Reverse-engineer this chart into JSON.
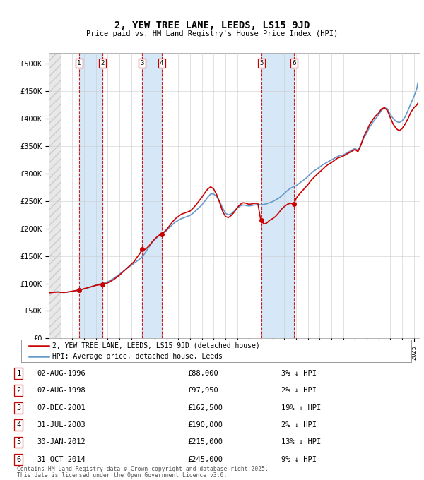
{
  "title": "2, YEW TREE LANE, LEEDS, LS15 9JD",
  "subtitle": "Price paid vs. HM Land Registry's House Price Index (HPI)",
  "legend_line1": "2, YEW TREE LANE, LEEDS, LS15 9JD (detached house)",
  "legend_line2": "HPI: Average price, detached house, Leeds",
  "footer1": "Contains HM Land Registry data © Crown copyright and database right 2025.",
  "footer2": "This data is licensed under the Open Government Licence v3.0.",
  "ylim": [
    0,
    520000
  ],
  "yticks": [
    0,
    50000,
    100000,
    150000,
    200000,
    250000,
    300000,
    350000,
    400000,
    450000,
    500000
  ],
  "ytick_labels": [
    "£0",
    "£50K",
    "£100K",
    "£150K",
    "£200K",
    "£250K",
    "£300K",
    "£350K",
    "£400K",
    "£450K",
    "£500K"
  ],
  "sale_dates": [
    1996.58,
    1998.58,
    2001.92,
    2003.58,
    2012.08,
    2014.83
  ],
  "sale_prices": [
    88000,
    97950,
    162500,
    190000,
    215000,
    245000
  ],
  "sale_labels": [
    "1",
    "2",
    "3",
    "4",
    "5",
    "6"
  ],
  "sale_info": [
    {
      "num": "1",
      "date": "02-AUG-1996",
      "price": "£88,000",
      "hpi": "3% ↓ HPI"
    },
    {
      "num": "2",
      "date": "07-AUG-1998",
      "price": "£97,950",
      "hpi": "2% ↓ HPI"
    },
    {
      "num": "3",
      "date": "07-DEC-2001",
      "price": "£162,500",
      "hpi": "19% ↑ HPI"
    },
    {
      "num": "4",
      "date": "31-JUL-2003",
      "price": "£190,000",
      "hpi": "2% ↓ HPI"
    },
    {
      "num": "5",
      "date": "30-JAN-2012",
      "price": "£215,000",
      "hpi": "13% ↓ HPI"
    },
    {
      "num": "6",
      "date": "31-OCT-2014",
      "price": "£245,000",
      "hpi": "9% ↓ HPI"
    }
  ],
  "hpi_color": "#6699cc",
  "price_color": "#cc0000",
  "dot_color": "#cc0000",
  "vline_color": "#cc0000",
  "shade_color": "#d6e8f7",
  "grid_color": "#cccccc",
  "hpi_data": [
    [
      1994.0,
      83000
    ],
    [
      1994.25,
      84000
    ],
    [
      1994.5,
      84500
    ],
    [
      1994.75,
      85000
    ],
    [
      1995.0,
      84000
    ],
    [
      1995.25,
      83500
    ],
    [
      1995.5,
      84000
    ],
    [
      1995.75,
      85000
    ],
    [
      1996.0,
      85500
    ],
    [
      1996.25,
      86000
    ],
    [
      1996.5,
      87000
    ],
    [
      1996.75,
      88500
    ],
    [
      1997.0,
      90000
    ],
    [
      1997.25,
      91500
    ],
    [
      1997.5,
      93000
    ],
    [
      1997.75,
      95000
    ],
    [
      1998.0,
      97000
    ],
    [
      1998.25,
      98500
    ],
    [
      1998.5,
      99500
    ],
    [
      1998.75,
      101000
    ],
    [
      1999.0,
      103000
    ],
    [
      1999.25,
      106000
    ],
    [
      1999.5,
      109000
    ],
    [
      1999.75,
      113000
    ],
    [
      2000.0,
      117000
    ],
    [
      2000.25,
      121000
    ],
    [
      2000.5,
      125000
    ],
    [
      2000.75,
      129000
    ],
    [
      2001.0,
      133000
    ],
    [
      2001.25,
      137000
    ],
    [
      2001.5,
      141000
    ],
    [
      2001.75,
      145000
    ],
    [
      2002.0,
      150000
    ],
    [
      2002.25,
      158000
    ],
    [
      2002.5,
      166000
    ],
    [
      2002.75,
      174000
    ],
    [
      2003.0,
      180000
    ],
    [
      2003.25,
      185000
    ],
    [
      2003.5,
      189000
    ],
    [
      2003.75,
      192000
    ],
    [
      2004.0,
      196000
    ],
    [
      2004.25,
      202000
    ],
    [
      2004.5,
      207000
    ],
    [
      2004.75,
      212000
    ],
    [
      2005.0,
      215000
    ],
    [
      2005.25,
      218000
    ],
    [
      2005.5,
      220000
    ],
    [
      2005.75,
      222000
    ],
    [
      2006.0,
      224000
    ],
    [
      2006.25,
      228000
    ],
    [
      2006.5,
      233000
    ],
    [
      2006.75,
      238000
    ],
    [
      2007.0,
      243000
    ],
    [
      2007.25,
      250000
    ],
    [
      2007.5,
      257000
    ],
    [
      2007.75,
      263000
    ],
    [
      2008.0,
      263000
    ],
    [
      2008.25,
      258000
    ],
    [
      2008.5,
      250000
    ],
    [
      2008.75,
      238000
    ],
    [
      2009.0,
      228000
    ],
    [
      2009.25,
      225000
    ],
    [
      2009.5,
      227000
    ],
    [
      2009.75,
      232000
    ],
    [
      2010.0,
      237000
    ],
    [
      2010.25,
      241000
    ],
    [
      2010.5,
      243000
    ],
    [
      2010.75,
      242000
    ],
    [
      2011.0,
      241000
    ],
    [
      2011.25,
      242000
    ],
    [
      2011.5,
      243000
    ],
    [
      2011.75,
      244000
    ],
    [
      2012.0,
      243000
    ],
    [
      2012.25,
      244000
    ],
    [
      2012.5,
      245000
    ],
    [
      2012.75,
      247000
    ],
    [
      2013.0,
      249000
    ],
    [
      2013.25,
      252000
    ],
    [
      2013.5,
      255000
    ],
    [
      2013.75,
      259000
    ],
    [
      2014.0,
      264000
    ],
    [
      2014.25,
      269000
    ],
    [
      2014.5,
      273000
    ],
    [
      2014.75,
      276000
    ],
    [
      2015.0,
      278000
    ],
    [
      2015.25,
      282000
    ],
    [
      2015.5,
      286000
    ],
    [
      2015.75,
      290000
    ],
    [
      2016.0,
      295000
    ],
    [
      2016.25,
      300000
    ],
    [
      2016.5,
      305000
    ],
    [
      2016.75,
      308000
    ],
    [
      2017.0,
      312000
    ],
    [
      2017.25,
      316000
    ],
    [
      2017.5,
      319000
    ],
    [
      2017.75,
      322000
    ],
    [
      2018.0,
      325000
    ],
    [
      2018.25,
      328000
    ],
    [
      2018.5,
      331000
    ],
    [
      2018.75,
      333000
    ],
    [
      2019.0,
      334000
    ],
    [
      2019.25,
      337000
    ],
    [
      2019.5,
      340000
    ],
    [
      2019.75,
      343000
    ],
    [
      2020.0,
      346000
    ],
    [
      2020.25,
      342000
    ],
    [
      2020.5,
      352000
    ],
    [
      2020.75,
      365000
    ],
    [
      2021.0,
      374000
    ],
    [
      2021.25,
      385000
    ],
    [
      2021.5,
      393000
    ],
    [
      2021.75,
      400000
    ],
    [
      2022.0,
      407000
    ],
    [
      2022.25,
      415000
    ],
    [
      2022.5,
      420000
    ],
    [
      2022.75,
      418000
    ],
    [
      2023.0,
      408000
    ],
    [
      2023.25,
      400000
    ],
    [
      2023.5,
      395000
    ],
    [
      2023.75,
      393000
    ],
    [
      2024.0,
      396000
    ],
    [
      2024.25,
      403000
    ],
    [
      2024.5,
      415000
    ],
    [
      2024.75,
      428000
    ],
    [
      2025.0,
      440000
    ],
    [
      2025.25,
      455000
    ],
    [
      2025.33,
      465000
    ]
  ],
  "price_data": [
    [
      1994.0,
      83000
    ],
    [
      1994.25,
      83500
    ],
    [
      1994.5,
      84000
    ],
    [
      1994.75,
      84500
    ],
    [
      1995.0,
      84000
    ],
    [
      1995.25,
      83800
    ],
    [
      1995.5,
      84200
    ],
    [
      1995.75,
      85000
    ],
    [
      1996.0,
      86000
    ],
    [
      1996.25,
      87000
    ],
    [
      1996.5,
      88000
    ],
    [
      1996.75,
      89000
    ],
    [
      1997.0,
      90500
    ],
    [
      1997.25,
      92000
    ],
    [
      1997.5,
      93500
    ],
    [
      1997.75,
      95000
    ],
    [
      1998.0,
      96500
    ],
    [
      1998.25,
      97500
    ],
    [
      1998.5,
      97950
    ],
    [
      1998.75,
      99000
    ],
    [
      1999.0,
      101000
    ],
    [
      1999.25,
      104000
    ],
    [
      1999.5,
      107000
    ],
    [
      1999.75,
      111000
    ],
    [
      2000.0,
      115000
    ],
    [
      2000.25,
      120000
    ],
    [
      2000.5,
      125000
    ],
    [
      2000.75,
      130000
    ],
    [
      2001.0,
      135000
    ],
    [
      2001.25,
      140000
    ],
    [
      2001.5,
      148000
    ],
    [
      2001.75,
      155000
    ],
    [
      2001.92,
      162500
    ],
    [
      2002.0,
      160000
    ],
    [
      2002.25,
      163000
    ],
    [
      2002.5,
      168000
    ],
    [
      2002.75,
      175000
    ],
    [
      2003.0,
      181000
    ],
    [
      2003.25,
      186000
    ],
    [
      2003.5,
      190000
    ],
    [
      2003.75,
      193000
    ],
    [
      2004.0,
      198000
    ],
    [
      2004.25,
      205000
    ],
    [
      2004.5,
      212000
    ],
    [
      2004.75,
      218000
    ],
    [
      2005.0,
      222000
    ],
    [
      2005.25,
      226000
    ],
    [
      2005.5,
      228000
    ],
    [
      2005.75,
      230000
    ],
    [
      2006.0,
      232000
    ],
    [
      2006.25,
      237000
    ],
    [
      2006.5,
      243000
    ],
    [
      2006.75,
      250000
    ],
    [
      2007.0,
      257000
    ],
    [
      2007.25,
      265000
    ],
    [
      2007.5,
      272000
    ],
    [
      2007.75,
      276000
    ],
    [
      2008.0,
      272000
    ],
    [
      2008.25,
      262000
    ],
    [
      2008.5,
      248000
    ],
    [
      2008.75,
      232000
    ],
    [
      2009.0,
      222000
    ],
    [
      2009.25,
      220000
    ],
    [
      2009.5,
      224000
    ],
    [
      2009.75,
      230000
    ],
    [
      2010.0,
      238000
    ],
    [
      2010.25,
      244000
    ],
    [
      2010.5,
      247000
    ],
    [
      2010.75,
      246000
    ],
    [
      2011.0,
      244000
    ],
    [
      2011.25,
      245000
    ],
    [
      2011.5,
      246000
    ],
    [
      2011.75,
      246000
    ],
    [
      2012.0,
      215000
    ],
    [
      2012.08,
      215000
    ],
    [
      2012.25,
      208000
    ],
    [
      2012.5,
      210000
    ],
    [
      2012.75,
      215000
    ],
    [
      2013.0,
      218000
    ],
    [
      2013.25,
      222000
    ],
    [
      2013.5,
      228000
    ],
    [
      2013.75,
      235000
    ],
    [
      2014.0,
      240000
    ],
    [
      2014.25,
      244000
    ],
    [
      2014.5,
      246000
    ],
    [
      2014.75,
      245000
    ],
    [
      2014.83,
      245000
    ],
    [
      2015.0,
      255000
    ],
    [
      2015.25,
      262000
    ],
    [
      2015.5,
      268000
    ],
    [
      2015.75,
      274000
    ],
    [
      2016.0,
      280000
    ],
    [
      2016.25,
      287000
    ],
    [
      2016.5,
      293000
    ],
    [
      2016.75,
      298000
    ],
    [
      2017.0,
      303000
    ],
    [
      2017.25,
      308000
    ],
    [
      2017.5,
      313000
    ],
    [
      2017.75,
      317000
    ],
    [
      2018.0,
      320000
    ],
    [
      2018.25,
      324000
    ],
    [
      2018.5,
      328000
    ],
    [
      2018.75,
      330000
    ],
    [
      2019.0,
      332000
    ],
    [
      2019.25,
      335000
    ],
    [
      2019.5,
      338000
    ],
    [
      2019.75,
      341000
    ],
    [
      2020.0,
      344000
    ],
    [
      2020.25,
      340000
    ],
    [
      2020.5,
      352000
    ],
    [
      2020.75,
      368000
    ],
    [
      2021.0,
      378000
    ],
    [
      2021.25,
      390000
    ],
    [
      2021.5,
      398000
    ],
    [
      2021.75,
      405000
    ],
    [
      2022.0,
      410000
    ],
    [
      2022.25,
      418000
    ],
    [
      2022.5,
      420000
    ],
    [
      2022.75,
      415000
    ],
    [
      2023.0,
      402000
    ],
    [
      2023.25,
      390000
    ],
    [
      2023.5,
      382000
    ],
    [
      2023.75,
      378000
    ],
    [
      2024.0,
      382000
    ],
    [
      2024.25,
      390000
    ],
    [
      2024.5,
      400000
    ],
    [
      2024.75,
      412000
    ],
    [
      2025.0,
      420000
    ],
    [
      2025.25,
      425000
    ],
    [
      2025.33,
      428000
    ]
  ]
}
